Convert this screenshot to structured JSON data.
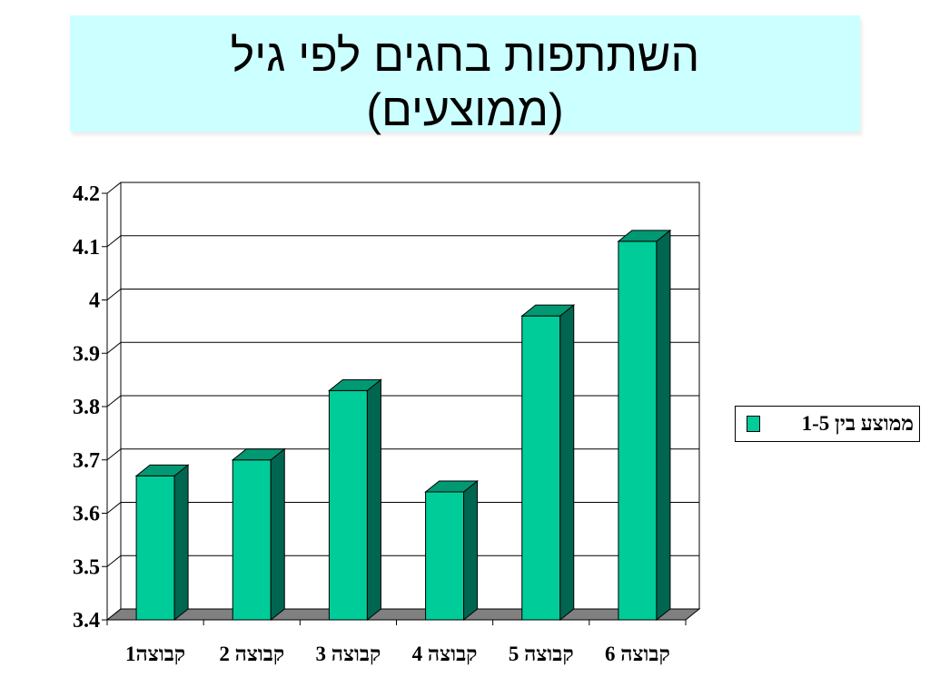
{
  "title": {
    "line1": "השתתפות בחגים לפי גיל",
    "line2": "(ממוצעים)"
  },
  "chart_data": {
    "type": "bar",
    "categories": [
      "קבוצה1",
      "קבוצה 2",
      "קבוצה 3",
      "קבוצה 4",
      "קבוצה 5",
      "קבוצה 6"
    ],
    "series": [
      {
        "name": "ממוצע בין 1-5",
        "values": [
          3.67,
          3.7,
          3.83,
          3.64,
          3.97,
          4.11
        ]
      }
    ],
    "ylim": [
      3.4,
      4.2
    ],
    "yticks": [
      "3.4",
      "3.5",
      "3.6",
      "3.7",
      "3.8",
      "3.9",
      "4",
      "4.1",
      "4.2"
    ],
    "grid": true,
    "legend_position": "right",
    "colors": {
      "bar_front": "#00cc99",
      "bar_side": "#006650",
      "bar_top": "#009973",
      "floor": "#808080"
    }
  }
}
